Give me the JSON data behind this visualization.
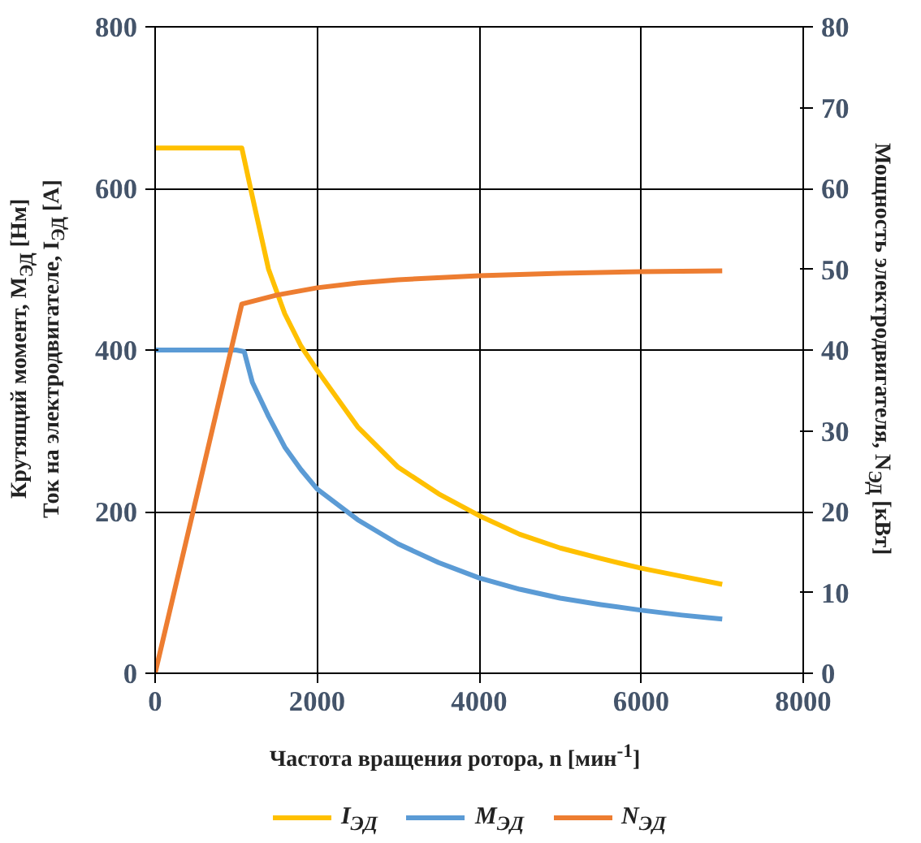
{
  "chart_data": {
    "type": "line",
    "xlabel": "Частота вращения ротора, n [мин$^{-1}$]",
    "ylabel": "Крутящий момент, M$_{ЭД}$ [Нм]\nТок на электродвигателе, I$_{ЭД}$ [А]",
    "y2label": "Мощность электродвигателя, N$_{ЭД}$ [кВт]",
    "xlim": [
      0,
      8000
    ],
    "xticks": [
      0,
      2000,
      4000,
      6000,
      8000
    ],
    "ylim": [
      0,
      800
    ],
    "yticks": [
      0,
      200,
      400,
      600,
      800
    ],
    "y2lim": [
      0,
      80
    ],
    "y2ticks": [
      0,
      10,
      20,
      30,
      40,
      50,
      60,
      70,
      80
    ],
    "grid": true,
    "legend": "bottom",
    "marker": "none",
    "line_style": "solid",
    "series": [
      {
        "name": "I$_{ЭД}$",
        "color": "#ffc000",
        "x": [
          0,
          1070,
          1200,
          1400,
          1600,
          1800,
          2000,
          2500,
          3000,
          3500,
          4000,
          4500,
          5000,
          5500,
          6000,
          6500,
          7000
        ],
        "values": [
          650,
          650,
          590,
          500,
          445,
          405,
          375,
          305,
          255,
          222,
          195,
          172,
          155,
          142,
          130,
          120,
          110
        ]
      },
      {
        "name": "M$_{ЭД}$",
        "color": "#5b9bd5",
        "x": [
          0,
          1000,
          1100,
          1200,
          1400,
          1600,
          1800,
          2000,
          2500,
          3000,
          3500,
          4000,
          4500,
          5000,
          5500,
          6000,
          6500,
          7000
        ],
        "values": [
          400,
          400,
          398,
          360,
          318,
          280,
          252,
          228,
          190,
          160,
          137,
          118,
          104,
          93,
          85,
          78,
          72,
          67
        ]
      },
      {
        "name": "N$_{ЭД}$",
        "color": "#ed7d31",
        "axis": "y2",
        "x": [
          0,
          1070,
          1500,
          2000,
          2500,
          3000,
          4000,
          5000,
          6000,
          7000
        ],
        "values": [
          0,
          45.7,
          46.8,
          47.7,
          48.3,
          48.7,
          49.2,
          49.5,
          49.7,
          49.8
        ]
      }
    ]
  }
}
